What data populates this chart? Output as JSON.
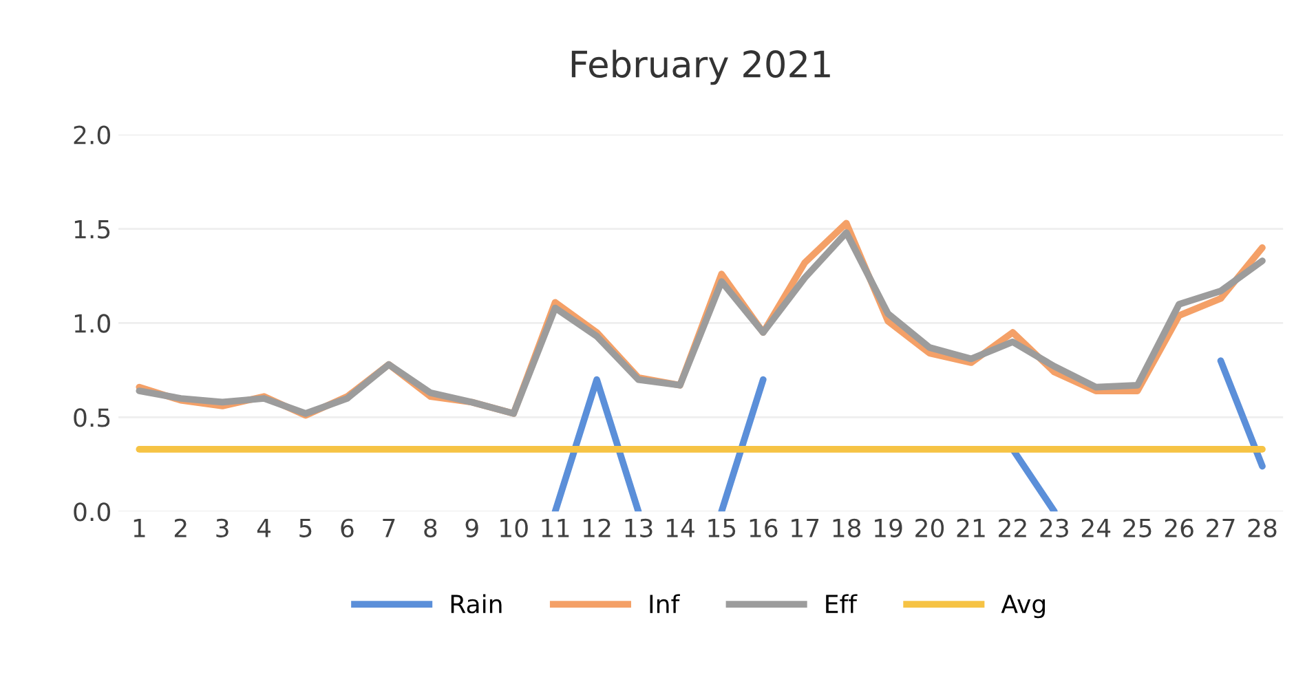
{
  "chart_data": {
    "type": "line",
    "title": "February 2021",
    "categories": [
      "1",
      "2",
      "3",
      "4",
      "5",
      "6",
      "7",
      "8",
      "9",
      "10",
      "11",
      "12",
      "13",
      "14",
      "15",
      "16",
      "17",
      "18",
      "19",
      "20",
      "21",
      "22",
      "23",
      "24",
      "25",
      "26",
      "27",
      "28"
    ],
    "series": [
      {
        "name": "Rain",
        "color": "#5b8fd9",
        "values": [
          null,
          null,
          null,
          null,
          null,
          null,
          null,
          null,
          null,
          null,
          0,
          0.7,
          0,
          null,
          0,
          0.7,
          null,
          null,
          null,
          null,
          null,
          0.33,
          0,
          null,
          null,
          null,
          0.8,
          0.24
        ]
      },
      {
        "name": "Inf",
        "color": "#f4a067",
        "values": [
          0.66,
          0.59,
          0.56,
          0.61,
          0.51,
          0.61,
          0.78,
          0.61,
          0.58,
          0.52,
          1.11,
          0.95,
          0.71,
          0.67,
          1.26,
          0.95,
          1.32,
          1.53,
          1.01,
          0.84,
          0.79,
          0.95,
          0.74,
          0.64,
          0.64,
          1.04,
          1.13,
          1.4
        ]
      },
      {
        "name": "Eff",
        "color": "#9c9c9c",
        "values": [
          0.64,
          0.6,
          0.58,
          0.6,
          0.52,
          0.6,
          0.78,
          0.63,
          0.58,
          0.52,
          1.08,
          0.93,
          0.7,
          0.67,
          1.22,
          0.95,
          1.24,
          1.48,
          1.05,
          0.87,
          0.81,
          0.9,
          0.77,
          0.66,
          0.67,
          1.1,
          1.17,
          1.33
        ]
      },
      {
        "name": "Avg",
        "color": "#f6c344",
        "values": [
          0.33,
          0.33,
          0.33,
          0.33,
          0.33,
          0.33,
          0.33,
          0.33,
          0.33,
          0.33,
          0.33,
          0.33,
          0.33,
          0.33,
          0.33,
          0.33,
          0.33,
          0.33,
          0.33,
          0.33,
          0.33,
          0.33,
          0.33,
          0.33,
          0.33,
          0.33,
          0.33,
          0.33
        ]
      }
    ],
    "ylim": [
      0,
      2
    ],
    "yticks": [
      {
        "value": 0,
        "label": "0.0"
      },
      {
        "value": 0.5,
        "label": "0.5"
      },
      {
        "value": 1,
        "label": "1.0"
      },
      {
        "value": 1.5,
        "label": "1.5"
      },
      {
        "value": 2,
        "label": "2.0"
      }
    ],
    "grid": "y",
    "legend": "bottom",
    "marker": "none",
    "line_style": "solid"
  }
}
